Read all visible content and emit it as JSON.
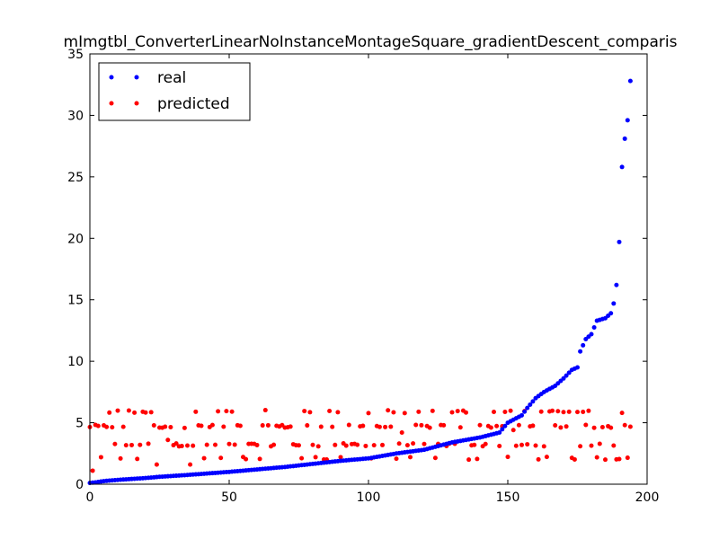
{
  "chart_data": {
    "type": "scatter",
    "title": "mImgtbl_ConverterLinearNoInstanceMontageSquare_gradientDescent_comparis",
    "xlabel": "",
    "ylabel": "",
    "xlim": [
      0,
      200
    ],
    "ylim": [
      0,
      35
    ],
    "xticks": [
      0,
      50,
      100,
      150,
      200
    ],
    "yticks": [
      0,
      5,
      10,
      15,
      20,
      25,
      30,
      35
    ],
    "grid": false,
    "legend_position": "top-left",
    "n_points": 195,
    "real_anchors": [
      [
        0,
        0.1
      ],
      [
        2,
        0.15
      ],
      [
        5,
        0.25
      ],
      [
        10,
        0.35
      ],
      [
        20,
        0.5
      ],
      [
        25,
        0.6
      ],
      [
        35,
        0.75
      ],
      [
        50,
        1.0
      ],
      [
        60,
        1.2
      ],
      [
        70,
        1.4
      ],
      [
        80,
        1.65
      ],
      [
        90,
        1.9
      ],
      [
        100,
        2.1
      ],
      [
        110,
        2.5
      ],
      [
        120,
        2.8
      ],
      [
        130,
        3.4
      ],
      [
        140,
        3.8
      ],
      [
        147,
        4.2
      ],
      [
        150,
        5.0
      ],
      [
        155,
        5.6
      ],
      [
        157,
        6.2
      ],
      [
        160,
        7.0
      ],
      [
        163,
        7.5
      ],
      [
        167,
        8.0
      ],
      [
        170,
        8.6
      ],
      [
        173,
        9.3
      ],
      [
        175,
        9.5
      ],
      [
        176,
        10.8
      ],
      [
        178,
        11.8
      ],
      [
        180,
        12.2
      ],
      [
        182,
        13.3
      ],
      [
        185,
        13.5
      ],
      [
        187,
        13.9
      ],
      [
        188,
        14.7
      ],
      [
        189,
        16.2
      ],
      [
        190,
        19.7
      ],
      [
        191,
        25.8
      ],
      [
        192,
        28.1
      ],
      [
        193,
        29.6
      ],
      [
        194,
        32.8
      ],
      [
        195,
        34.9
      ]
    ],
    "series": [
      {
        "name": "real",
        "color": "#0000ff",
        "marker": "dot"
      },
      {
        "name": "predicted",
        "color": "#ff0000",
        "marker": "dot",
        "levels": [
          2.1,
          3.2,
          4.7,
          5.9
        ],
        "level_weights": [
          0.18,
          0.3,
          0.27,
          0.25
        ],
        "outliers": [
          1.1,
          1.6,
          1.6,
          3.6,
          4.2,
          4.4
        ]
      }
    ]
  }
}
